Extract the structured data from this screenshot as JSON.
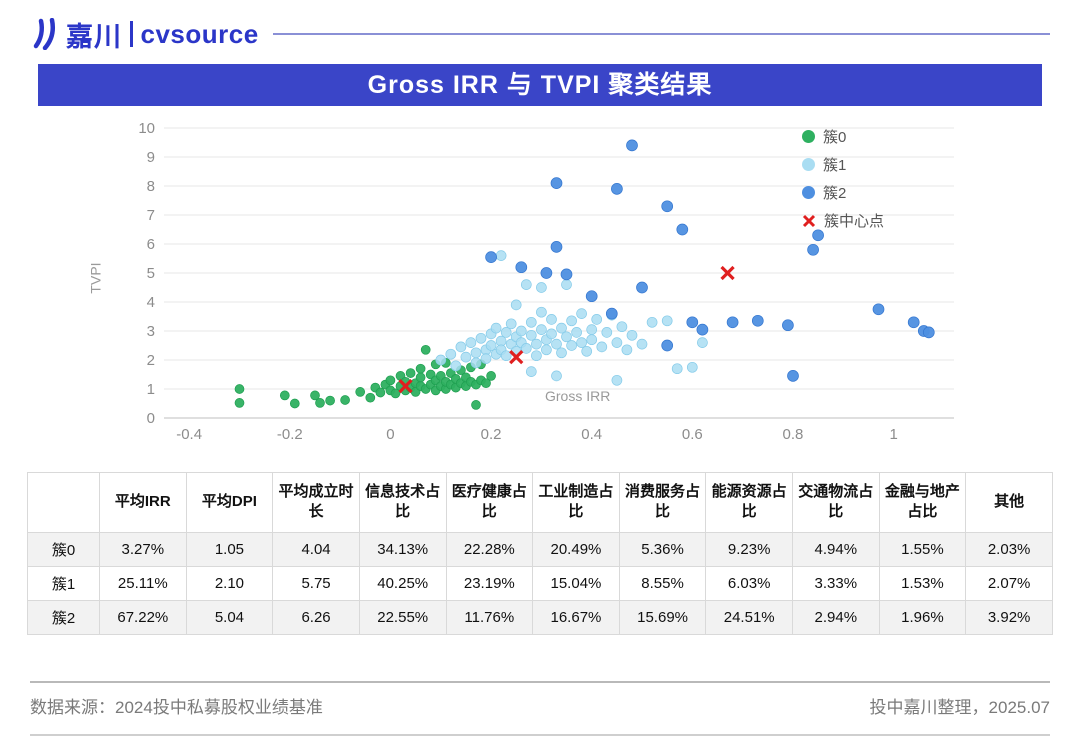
{
  "brand": {
    "name_cn": "嘉川",
    "name_en": "cvsource",
    "color": "#2b36c8"
  },
  "title": "Gross IRR 与 TVPI 聚类结果",
  "chart_data": {
    "type": "scatter",
    "title": "Gross IRR 与 TVPI 聚类结果",
    "xlabel": "Gross IRR",
    "ylabel": "TVPI",
    "xlim": [
      -0.45,
      1.12
    ],
    "ylim": [
      0,
      10
    ],
    "xticks": [
      -0.4,
      -0.2,
      0,
      0.2,
      0.4,
      0.6,
      0.8,
      1
    ],
    "yticks": [
      0,
      1,
      2,
      3,
      4,
      5,
      6,
      7,
      8,
      9,
      10
    ],
    "grid": "horizontal",
    "legend_position": "top-right",
    "series": [
      {
        "name": "簇0",
        "color": "#2eb060",
        "edge": "#1e9e50",
        "opacity": 0.95,
        "r": 4.5,
        "points": [
          [
            -0.3,
            1.0
          ],
          [
            -0.3,
            0.52
          ],
          [
            -0.21,
            0.78
          ],
          [
            -0.19,
            0.5
          ],
          [
            -0.15,
            0.78
          ],
          [
            -0.14,
            0.52
          ],
          [
            -0.12,
            0.6
          ],
          [
            -0.09,
            0.62
          ],
          [
            -0.06,
            0.9
          ],
          [
            -0.04,
            0.7
          ],
          [
            -0.03,
            1.05
          ],
          [
            -0.02,
            0.88
          ],
          [
            -0.01,
            1.15
          ],
          [
            0.0,
            0.95
          ],
          [
            0.0,
            1.3
          ],
          [
            0.01,
            0.85
          ],
          [
            0.02,
            1.1
          ],
          [
            0.02,
            1.45
          ],
          [
            0.03,
            0.95
          ],
          [
            0.03,
            1.25
          ],
          [
            0.04,
            1.05
          ],
          [
            0.04,
            1.55
          ],
          [
            0.05,
            0.9
          ],
          [
            0.05,
            1.2
          ],
          [
            0.06,
            1.1
          ],
          [
            0.06,
            1.4
          ],
          [
            0.06,
            1.7
          ],
          [
            0.07,
            1.0
          ],
          [
            0.07,
            2.35
          ],
          [
            0.08,
            1.15
          ],
          [
            0.08,
            1.5
          ],
          [
            0.09,
            0.95
          ],
          [
            0.09,
            1.3
          ],
          [
            0.09,
            1.85
          ],
          [
            0.1,
            1.1
          ],
          [
            0.1,
            1.45
          ],
          [
            0.11,
            1.0
          ],
          [
            0.11,
            1.25
          ],
          [
            0.11,
            1.9
          ],
          [
            0.12,
            1.15
          ],
          [
            0.12,
            1.55
          ],
          [
            0.13,
            1.05
          ],
          [
            0.13,
            1.35
          ],
          [
            0.14,
            1.2
          ],
          [
            0.14,
            1.65
          ],
          [
            0.15,
            1.1
          ],
          [
            0.15,
            1.4
          ],
          [
            0.16,
            1.25
          ],
          [
            0.16,
            1.75
          ],
          [
            0.17,
            1.15
          ],
          [
            0.17,
            0.45
          ],
          [
            0.18,
            1.3
          ],
          [
            0.18,
            1.85
          ],
          [
            0.19,
            1.2
          ],
          [
            0.2,
            1.45
          ]
        ]
      },
      {
        "name": "簇1",
        "color": "#a9ddf2",
        "edge": "#85cbe9",
        "opacity": 0.85,
        "r": 5,
        "points": [
          [
            0.1,
            2.0
          ],
          [
            0.12,
            2.2
          ],
          [
            0.13,
            1.8
          ],
          [
            0.14,
            2.45
          ],
          [
            0.15,
            2.1
          ],
          [
            0.16,
            2.6
          ],
          [
            0.17,
            2.25
          ],
          [
            0.17,
            1.9
          ],
          [
            0.18,
            2.75
          ],
          [
            0.19,
            2.35
          ],
          [
            0.19,
            2.05
          ],
          [
            0.2,
            2.9
          ],
          [
            0.2,
            2.5
          ],
          [
            0.21,
            2.2
          ],
          [
            0.21,
            3.1
          ],
          [
            0.22,
            2.65
          ],
          [
            0.22,
            2.35
          ],
          [
            0.22,
            5.6
          ],
          [
            0.23,
            2.95
          ],
          [
            0.23,
            2.15
          ],
          [
            0.24,
            2.55
          ],
          [
            0.24,
            3.25
          ],
          [
            0.25,
            2.8
          ],
          [
            0.25,
            2.3
          ],
          [
            0.25,
            3.9
          ],
          [
            0.26,
            3.0
          ],
          [
            0.26,
            2.6
          ],
          [
            0.27,
            2.4
          ],
          [
            0.27,
            4.6
          ],
          [
            0.28,
            2.85
          ],
          [
            0.28,
            3.3
          ],
          [
            0.28,
            1.6
          ],
          [
            0.29,
            2.55
          ],
          [
            0.29,
            2.15
          ],
          [
            0.3,
            3.05
          ],
          [
            0.3,
            4.5
          ],
          [
            0.3,
            3.65
          ],
          [
            0.31,
            2.7
          ],
          [
            0.31,
            2.35
          ],
          [
            0.32,
            3.4
          ],
          [
            0.32,
            2.9
          ],
          [
            0.33,
            2.55
          ],
          [
            0.33,
            1.45
          ],
          [
            0.34,
            3.1
          ],
          [
            0.34,
            2.25
          ],
          [
            0.35,
            2.8
          ],
          [
            0.35,
            4.6
          ],
          [
            0.36,
            3.35
          ],
          [
            0.36,
            2.5
          ],
          [
            0.37,
            2.95
          ],
          [
            0.38,
            2.6
          ],
          [
            0.38,
            3.6
          ],
          [
            0.39,
            2.3
          ],
          [
            0.4,
            3.05
          ],
          [
            0.4,
            2.7
          ],
          [
            0.41,
            3.4
          ],
          [
            0.42,
            2.45
          ],
          [
            0.43,
            2.95
          ],
          [
            0.44,
            3.55
          ],
          [
            0.45,
            2.6
          ],
          [
            0.45,
            1.3
          ],
          [
            0.46,
            3.15
          ],
          [
            0.47,
            2.35
          ],
          [
            0.48,
            2.85
          ],
          [
            0.5,
            2.55
          ],
          [
            0.52,
            3.3
          ],
          [
            0.55,
            3.35
          ],
          [
            0.57,
            1.7
          ],
          [
            0.6,
            1.75
          ],
          [
            0.62,
            2.6
          ]
        ]
      },
      {
        "name": "簇2",
        "color": "#4e8fe0",
        "edge": "#3577d0",
        "opacity": 0.95,
        "r": 5.5,
        "points": [
          [
            0.48,
            9.4
          ],
          [
            0.33,
            8.1
          ],
          [
            0.45,
            7.9
          ],
          [
            0.55,
            7.3
          ],
          [
            0.33,
            5.9
          ],
          [
            0.2,
            5.55
          ],
          [
            0.26,
            5.2
          ],
          [
            0.31,
            5.0
          ],
          [
            0.35,
            4.95
          ],
          [
            0.5,
            4.5
          ],
          [
            0.58,
            6.5
          ],
          [
            0.85,
            6.3
          ],
          [
            0.84,
            5.8
          ],
          [
            0.6,
            3.3
          ],
          [
            0.62,
            3.05
          ],
          [
            0.68,
            3.3
          ],
          [
            0.73,
            3.35
          ],
          [
            0.79,
            3.2
          ],
          [
            0.8,
            1.45
          ],
          [
            0.97,
            3.75
          ],
          [
            1.04,
            3.3
          ],
          [
            1.06,
            3.0
          ],
          [
            1.07,
            2.95
          ],
          [
            0.55,
            2.5
          ],
          [
            0.44,
            3.6
          ],
          [
            0.4,
            4.2
          ]
        ]
      }
    ],
    "centers": {
      "name": "簇中心点",
      "color": "#e01f1f",
      "points": [
        [
          0.03,
          1.1
        ],
        [
          0.25,
          2.1
        ],
        [
          0.67,
          5.0
        ]
      ]
    }
  },
  "table": {
    "headers": [
      "",
      "平均IRR",
      "平均DPI",
      "平均成立时长",
      "信息技术占比",
      "医疗健康占比",
      "工业制造占比",
      "消费服务占比",
      "能源资源占比",
      "交通物流占比",
      "金融与地产占比",
      "其他"
    ],
    "rows": [
      {
        "label": "簇0",
        "values": [
          "3.27%",
          "1.05",
          "4.04",
          "34.13%",
          "22.28%",
          "20.49%",
          "5.36%",
          "9.23%",
          "4.94%",
          "1.55%",
          "2.03%"
        ]
      },
      {
        "label": "簇1",
        "values": [
          "25.11%",
          "2.10",
          "5.75",
          "40.25%",
          "23.19%",
          "15.04%",
          "8.55%",
          "6.03%",
          "3.33%",
          "1.53%",
          "2.07%"
        ]
      },
      {
        "label": "簇2",
        "values": [
          "67.22%",
          "5.04",
          "6.26",
          "22.55%",
          "11.76%",
          "16.67%",
          "15.69%",
          "24.51%",
          "2.94%",
          "1.96%",
          "3.92%"
        ]
      }
    ]
  },
  "footer": {
    "source": "数据来源：2024投中私募股权业绩基准",
    "credit": "投中嘉川整理，2025.07"
  }
}
